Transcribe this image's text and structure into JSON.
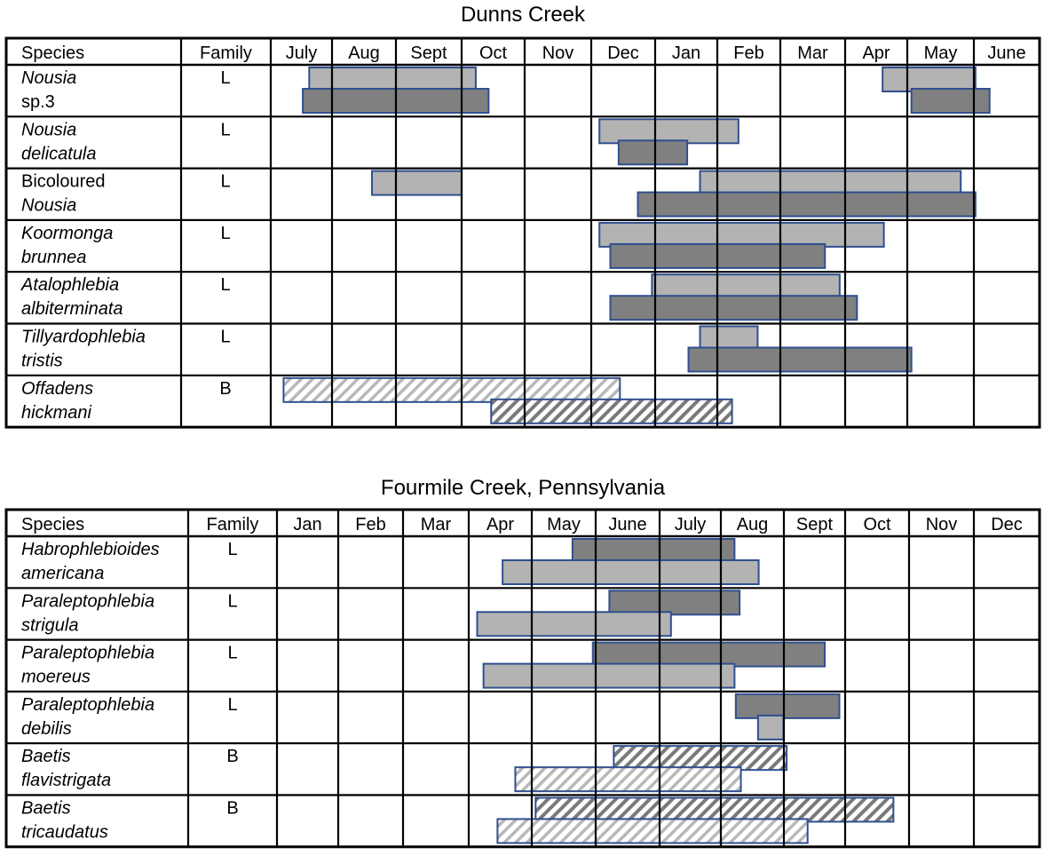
{
  "chart_data": [
    {
      "type": "gantt",
      "title": "Dunns Creek",
      "header": {
        "species": "Species",
        "family": "Family"
      },
      "months": [
        "July",
        "Aug",
        "Sept",
        "Oct",
        "Nov",
        "Dec",
        "Jan",
        "Feb",
        "Mar",
        "Apr",
        "May",
        "June"
      ],
      "rows": [
        {
          "species": [
            "Nousia",
            "sp.3"
          ],
          "italic": [
            true,
            false
          ],
          "family": "L",
          "bars": [
            {
              "lane": "upper",
              "fill": "light",
              "start": 0.6,
              "end": 3.2
            },
            {
              "lane": "upper",
              "fill": "light",
              "start": 9.55,
              "end": 11.0
            },
            {
              "lane": "lower",
              "fill": "dark",
              "start": 0.5,
              "end": 3.4
            },
            {
              "lane": "lower",
              "fill": "dark",
              "start": 10.0,
              "end": 11.22
            }
          ]
        },
        {
          "species": [
            "Nousia",
            "delicatula"
          ],
          "italic": [
            true,
            true
          ],
          "family": "L",
          "bars": [
            {
              "lane": "upper",
              "fill": "light",
              "start": 5.13,
              "end": 7.3
            },
            {
              "lane": "lower",
              "fill": "dark",
              "start": 5.43,
              "end": 6.5
            }
          ]
        },
        {
          "species": [
            "Bicoloured",
            "Nousia"
          ],
          "italic": [
            false,
            true
          ],
          "family": "L",
          "bars": [
            {
              "lane": "upper",
              "fill": "light",
              "start": 1.58,
              "end": 2.98
            },
            {
              "lane": "upper",
              "fill": "light",
              "start": 6.7,
              "end": 10.77
            },
            {
              "lane": "lower",
              "fill": "dark",
              "start": 5.73,
              "end": 11.0
            }
          ]
        },
        {
          "species": [
            "Koormonga",
            "brunnea"
          ],
          "italic": [
            true,
            true
          ],
          "family": "L",
          "bars": [
            {
              "lane": "upper",
              "fill": "light",
              "start": 5.13,
              "end": 9.57
            },
            {
              "lane": "lower",
              "fill": "dark",
              "start": 5.3,
              "end": 8.65
            }
          ]
        },
        {
          "species": [
            "Atalophlebia",
            "albiterminata"
          ],
          "italic": [
            true,
            true
          ],
          "family": "L",
          "bars": [
            {
              "lane": "upper",
              "fill": "light",
              "start": 5.95,
              "end": 8.88
            },
            {
              "lane": "lower",
              "fill": "dark",
              "start": 5.3,
              "end": 9.15
            }
          ]
        },
        {
          "species": [
            "Tillyardophlebia",
            "tristis"
          ],
          "italic": [
            true,
            true
          ],
          "family": "L",
          "bars": [
            {
              "lane": "upper",
              "fill": "light",
              "start": 6.7,
              "end": 7.6
            },
            {
              "lane": "lower",
              "fill": "dark",
              "start": 6.52,
              "end": 10.0
            }
          ]
        },
        {
          "species": [
            "Offadens",
            "hickmani"
          ],
          "italic": [
            true,
            true
          ],
          "family": "B",
          "bars": [
            {
              "lane": "upper",
              "fill": "hatch-light",
              "start": 0.2,
              "end": 5.45
            },
            {
              "lane": "lower",
              "fill": "hatch-dark",
              "start": 3.44,
              "end": 7.2
            }
          ]
        }
      ]
    },
    {
      "type": "gantt",
      "title": "Fourmile Creek, Pennsylvania",
      "header": {
        "species": "Species",
        "family": "Family"
      },
      "months": [
        "Jan",
        "Feb",
        "Mar",
        "Apr",
        "May",
        "June",
        "July",
        "Aug",
        "Sept",
        "Oct",
        "Nov",
        "Dec"
      ],
      "rows": [
        {
          "species": [
            "Habrophlebioides",
            "americana"
          ],
          "italic": [
            true,
            true
          ],
          "family": "L",
          "bars": [
            {
              "lane": "upper",
              "fill": "dark",
              "start": 4.65,
              "end": 7.2
            },
            {
              "lane": "lower",
              "fill": "light",
              "start": 3.55,
              "end": 7.58
            }
          ]
        },
        {
          "species": [
            "Paraleptophlebia",
            "strigula"
          ],
          "italic": [
            true,
            true
          ],
          "family": "L",
          "bars": [
            {
              "lane": "upper",
              "fill": "dark",
              "start": 5.23,
              "end": 7.28
            },
            {
              "lane": "lower",
              "fill": "light",
              "start": 3.15,
              "end": 6.2
            }
          ]
        },
        {
          "species": [
            "Paraleptophlebia",
            "moereus"
          ],
          "italic": [
            true,
            true
          ],
          "family": "L",
          "bars": [
            {
              "lane": "upper",
              "fill": "dark",
              "start": 4.97,
              "end": 8.62
            },
            {
              "lane": "lower",
              "fill": "light",
              "start": 3.25,
              "end": 7.2
            }
          ]
        },
        {
          "species": [
            "Paraleptophlebia",
            "debilis"
          ],
          "italic": [
            true,
            true
          ],
          "family": "L",
          "bars": [
            {
              "lane": "upper",
              "fill": "dark",
              "start": 7.22,
              "end": 8.85
            },
            {
              "lane": "lower",
              "fill": "light",
              "start": 7.57,
              "end": 7.97
            }
          ]
        },
        {
          "species": [
            "Baetis",
            "flavistrigata"
          ],
          "italic": [
            true,
            true
          ],
          "family": "B",
          "bars": [
            {
              "lane": "upper",
              "fill": "hatch-dark",
              "start": 5.3,
              "end": 8.02
            },
            {
              "lane": "lower",
              "fill": "hatch-light",
              "start": 3.75,
              "end": 7.3
            }
          ]
        },
        {
          "species": [
            "Baetis",
            "tricaudatus"
          ],
          "italic": [
            true,
            true
          ],
          "family": "B",
          "bars": [
            {
              "lane": "upper",
              "fill": "hatch-dark",
              "start": 4.07,
              "end": 9.7
            },
            {
              "lane": "lower",
              "fill": "hatch-light",
              "start": 3.47,
              "end": 8.35
            }
          ]
        }
      ]
    }
  ],
  "colors": {
    "light_fill": "#b3b3b3",
    "dark_fill": "#808080",
    "bar_stroke": "#2f4f8f",
    "hatch_light": "#b8b8b8",
    "hatch_dark": "#7a7a7a",
    "grid": "#000000"
  }
}
